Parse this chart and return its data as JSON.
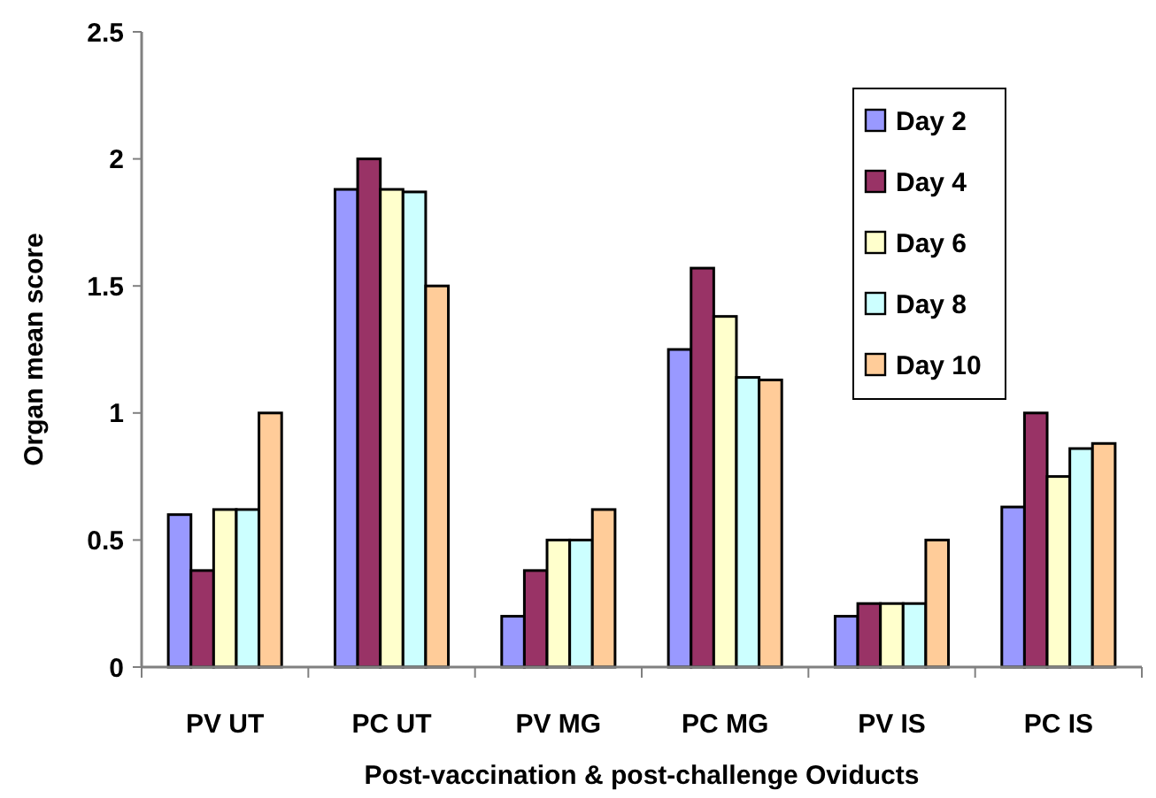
{
  "chart_data": {
    "type": "bar",
    "xlabel": "Post-vaccination & post-challenge Oviducts",
    "ylabel": "Organ mean score",
    "categories": [
      "PV UT",
      "PC UT",
      "PV MG",
      "PC MG",
      "PV IS",
      "PC IS"
    ],
    "series": [
      {
        "name": "Day 2",
        "color": "#9999ff",
        "values": [
          0.6,
          1.88,
          0.2,
          1.25,
          0.2,
          0.63
        ]
      },
      {
        "name": "Day 4",
        "color": "#993366",
        "values": [
          0.38,
          2.0,
          0.38,
          1.57,
          0.25,
          1.0
        ]
      },
      {
        "name": "Day 6",
        "color": "#ffffcc",
        "values": [
          0.62,
          1.88,
          0.5,
          1.38,
          0.25,
          0.75
        ]
      },
      {
        "name": "Day 8",
        "color": "#ccffff",
        "values": [
          0.62,
          1.87,
          0.5,
          1.14,
          0.25,
          0.86
        ]
      },
      {
        "name": "Day 10",
        "color": "#ffcc99",
        "values": [
          1.0,
          1.5,
          0.62,
          1.13,
          0.5,
          0.88
        ]
      }
    ],
    "ylim": [
      0,
      2.5
    ],
    "yticks": [
      0,
      {
        "value": 0.5,
        "label": "0.5"
      },
      1,
      {
        "value": 1.5,
        "label": "1.5"
      },
      2,
      {
        "value": 2.5,
        "label": "2.5"
      }
    ],
    "grid": false,
    "legend": "top right"
  }
}
